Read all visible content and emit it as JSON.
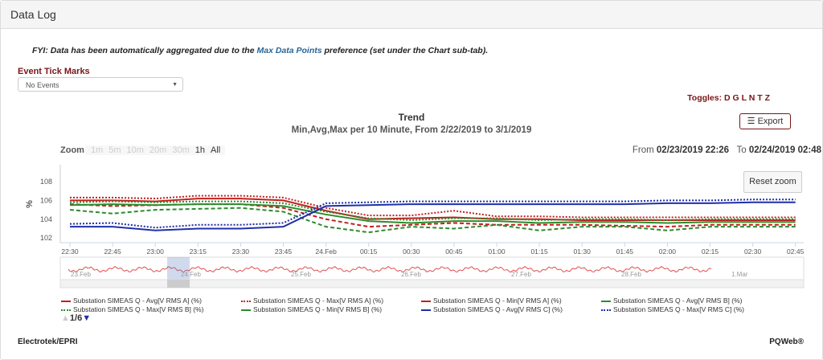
{
  "panel": {
    "title": "Data Log"
  },
  "notice": {
    "prefix": "FYI: Data has been automatically aggregated due to the ",
    "link": "Max Data Points",
    "suffix": " preference (set under the Chart sub-tab)."
  },
  "events": {
    "label": "Event Tick Marks",
    "value": "No Events"
  },
  "toggles": "Toggles: D G L N T Z",
  "export_label": "Export",
  "zoom": {
    "label": "Zoom",
    "options": [
      "1m",
      "5m",
      "10m",
      "20m",
      "30m",
      "1h",
      "All"
    ],
    "enabled": [
      "1h",
      "All"
    ]
  },
  "range": {
    "from_label": "From",
    "from": "02/23/2019 22:26",
    "to_label": "To",
    "to": "02/24/2019 02:48"
  },
  "reset_zoom": "Reset zoom",
  "navigator": {
    "labels": [
      "23.Feb",
      "24.Feb",
      "25.Feb",
      "26.Feb",
      "27.Feb",
      "28.Feb",
      "1.Mar"
    ],
    "color": "#e05050"
  },
  "pager": {
    "text": "1/6"
  },
  "footer": {
    "left": "Electrotek/EPRI",
    "right": "PQWeb®"
  },
  "chart_data": {
    "type": "line",
    "title": "Trend",
    "subtitle": "Min,Avg,Max per 10 Minute, From 2/22/2019 to 3/1/2019",
    "ylabel": "%",
    "ylim": [
      101.5,
      109.8
    ],
    "yticks": [
      102,
      104,
      106,
      108
    ],
    "x": [
      "22:30",
      "22:45",
      "23:00",
      "23:15",
      "23:30",
      "23:45",
      "24.Feb",
      "00:15",
      "00:30",
      "00:45",
      "01:00",
      "01:15",
      "01:30",
      "01:45",
      "02:00",
      "02:15",
      "02:30",
      "02:45"
    ],
    "series": [
      {
        "name": "Substation SIMEAS Q - Avg[V RMS A] (%)",
        "color": "#c0201e",
        "dash": "solid",
        "values": [
          106,
          106,
          105.9,
          106.2,
          106.2,
          106,
          104.9,
          104,
          104.1,
          104.2,
          104,
          104,
          103.9,
          103.9,
          103.9,
          103.9,
          103.9,
          103.9
        ]
      },
      {
        "name": "Substation SIMEAS Q - Max[V RMS A] (%)",
        "color": "#c0201e",
        "dash": "dot",
        "values": [
          106.3,
          106.3,
          106.2,
          106.5,
          106.5,
          106.3,
          105.2,
          104.4,
          104.4,
          104.9,
          104.3,
          104.3,
          104.2,
          104.2,
          104.2,
          104.2,
          104.2,
          104.2
        ]
      },
      {
        "name": "Substation SIMEAS Q - Min[V RMS A] (%)",
        "color": "#c0201e",
        "dash": "dash",
        "values": [
          105.6,
          105.4,
          105.5,
          105.6,
          105.6,
          105.2,
          104,
          103.2,
          103.4,
          103.6,
          103.4,
          103.4,
          103.4,
          103.3,
          103.2,
          103.4,
          103.4,
          103.4
        ]
      },
      {
        "name": "Substation SIMEAS Q - Avg[V RMS B] (%)",
        "color": "#2e8b2e",
        "dash": "solid",
        "values": [
          105.5,
          105.6,
          105.5,
          105.6,
          105.6,
          105.4,
          104.5,
          103.8,
          103.6,
          103.8,
          103.8,
          103.6,
          103.7,
          103.7,
          103.6,
          103.7,
          103.7,
          103.7
        ]
      },
      {
        "name": "Substation SIMEAS Q - Max[V RMS B] (%)",
        "color": "#2e8b2e",
        "dash": "dot",
        "values": [
          105.8,
          105.9,
          105.8,
          105.9,
          105.9,
          105.7,
          104.8,
          104.1,
          103.9,
          104.1,
          104.1,
          103.9,
          104,
          104,
          103.9,
          104,
          104,
          104
        ]
      },
      {
        "name": "Substation SIMEAS Q - Min[V RMS B] (%)",
        "color": "#2e8b2e",
        "dash": "dash",
        "values": [
          105,
          104.6,
          105,
          105.1,
          105.2,
          104.8,
          103.2,
          102.6,
          103.2,
          103,
          103.4,
          102.8,
          103.2,
          103.2,
          102.8,
          103.2,
          103.2,
          103.2
        ]
      },
      {
        "name": "Substation SIMEAS Q - Avg[V RMS C] (%)",
        "color": "#1f2fa8",
        "dash": "solid",
        "values": [
          103.2,
          103.2,
          102.8,
          103,
          103,
          103.2,
          105.4,
          105.5,
          105.6,
          105.6,
          105.6,
          105.6,
          105.6,
          105.6,
          105.7,
          105.7,
          105.8,
          105.8
        ]
      },
      {
        "name": "Substation SIMEAS Q - Max[V RMS C] (%)",
        "color": "#1f2fa8",
        "dash": "dot",
        "values": [
          103.5,
          103.6,
          103.1,
          103.4,
          103.4,
          103.6,
          105.7,
          105.8,
          105.9,
          105.9,
          105.9,
          105.9,
          105.9,
          105.9,
          106,
          106,
          106.1,
          106.1
        ]
      }
    ]
  }
}
